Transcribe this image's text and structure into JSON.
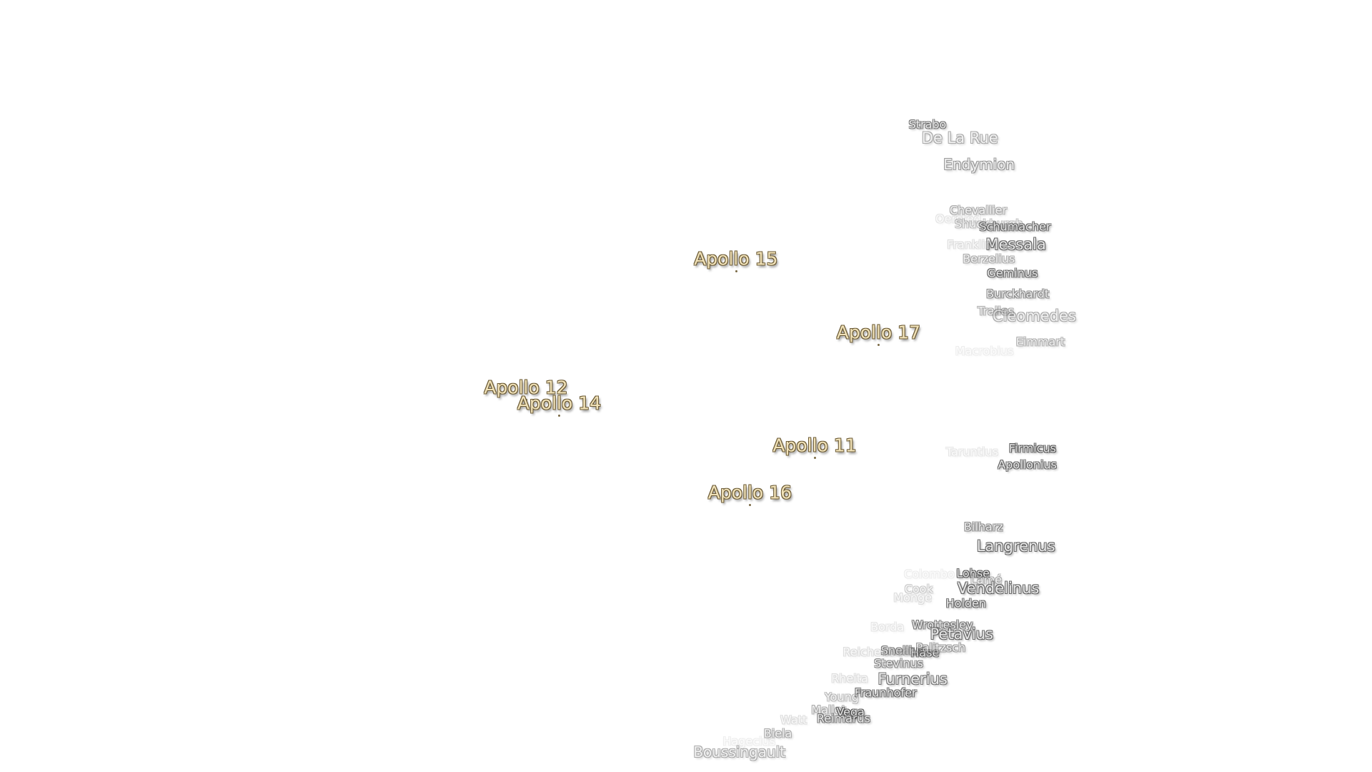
{
  "apollo_sites": [
    "Apollo 15",
    "Apollo 17",
    "Apollo 12",
    "Apollo 14",
    "Apollo 11",
    "Apollo 16"
  ],
  "craters": [
    "Strabo",
    "De La Rue",
    "Endymion",
    "Chevallier",
    "Oersted",
    "Shuckburgh",
    "Schumacher",
    "Messala",
    "Franklin",
    "Berzelius",
    "Geminus",
    "Burckhardt",
    "Tralles",
    "Cleomedes",
    "Eimmart",
    "Macrobius",
    "Taruntius",
    "Firmicus",
    "Apollonius",
    "Bilharz",
    "Langrenus",
    "Colombo",
    "Lohse",
    "Lamé",
    "Vendelinus",
    "Cook",
    "Monge",
    "Holden",
    "Borda",
    "Wrottesley",
    "Petavius",
    "Snellius",
    "Hase",
    "Palitzsch",
    "Reichenbach",
    "Stevinus",
    "Rheita",
    "Furnerius",
    "Fraunhofer",
    "Young",
    "Mallet",
    "Vega",
    "Reimarus",
    "Watt",
    "Biela",
    "Hagecius",
    "Boussingault"
  ]
}
